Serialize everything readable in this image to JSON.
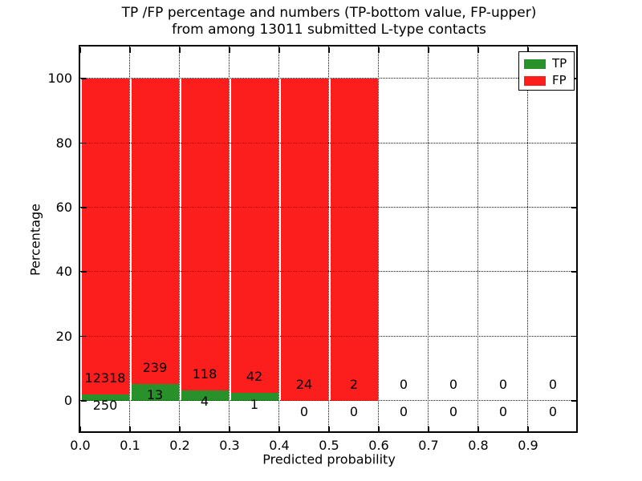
{
  "title": {
    "line1": "TP /FP percentage and numbers (TP-bottom value, FP-upper)",
    "line2": "from among 13011 submitted L-type contacts"
  },
  "chart_data": {
    "type": "bar",
    "stacked": true,
    "normalized_per_bin_to_100": true,
    "title": "TP /FP percentage and numbers (TP-bottom value, FP-upper) from among 13011 submitted L-type contacts",
    "xlabel": "Predicted probability",
    "ylabel": "Percentage",
    "xlim": [
      0.0,
      1.0
    ],
    "ylim": [
      -10,
      110
    ],
    "x_tick_labels": [
      "0.0",
      "0.1",
      "0.2",
      "0.3",
      "0.4",
      "0.5",
      "0.6",
      "0.7",
      "0.8",
      "0.9"
    ],
    "y_tick_values": [
      0,
      20,
      40,
      60,
      80,
      100
    ],
    "bin_width": 0.1,
    "bin_starts": [
      0.0,
      0.1,
      0.2,
      0.3,
      0.4,
      0.5,
      0.6,
      0.7,
      0.8,
      0.9
    ],
    "series": [
      {
        "name": "TP",
        "color": "#289129",
        "counts": [
          250,
          13,
          4,
          1,
          0,
          0,
          0,
          0,
          0,
          0
        ]
      },
      {
        "name": "FP",
        "color": "#fc1d1d",
        "counts": [
          12318,
          239,
          118,
          42,
          24,
          2,
          0,
          0,
          0,
          0
        ]
      }
    ],
    "total_submitted": 13011,
    "legend": {
      "position": "upper right",
      "entries": [
        "TP",
        "FP"
      ]
    },
    "grid": {
      "style": "dotted",
      "color": "#000000"
    },
    "bar_label_offsets_pct": {
      "fp": 5,
      "tp": -3.5
    }
  }
}
